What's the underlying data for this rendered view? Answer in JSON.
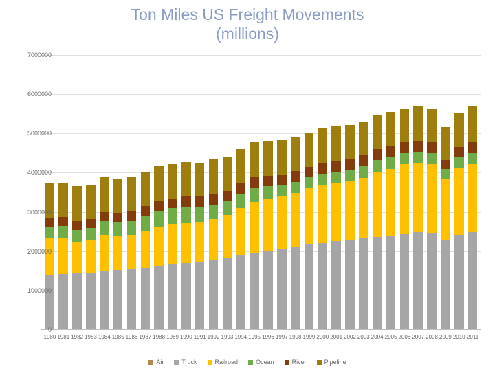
{
  "chart": {
    "type": "stacked-bar",
    "title_line1": "Ton Miles US Freight Movements",
    "title_line2": "(millions)",
    "title_color": "#8b9dc3",
    "title_fontsize": 23,
    "background_color": "#ffffff",
    "grid_color": "#e0e0e0",
    "axis_label_color": "#666666",
    "axis_label_fontsize": 9,
    "yaxis": {
      "min": 0,
      "max": 7000000,
      "step": 1000000,
      "ticks": [
        0,
        1000000,
        2000000,
        3000000,
        4000000,
        5000000,
        6000000,
        7000000
      ]
    },
    "series": [
      {
        "name": "Air",
        "color": "#b0894b"
      },
      {
        "name": "Truck",
        "color": "#a6a6a6"
      },
      {
        "name": "Railroad",
        "color": "#ffc000"
      },
      {
        "name": "Ocean",
        "color": "#70ad47"
      },
      {
        "name": "River",
        "color": "#843c0c"
      },
      {
        "name": "Pipeline",
        "color": "#9e7e0c"
      }
    ],
    "legend_order": [
      "Air",
      "Truck",
      "Railroad",
      "Ocean",
      "River",
      "Pipeline"
    ],
    "stack_order_bottom_to_top": [
      "Truck",
      "Railroad",
      "Ocean",
      "River",
      "Pipeline"
    ],
    "years": [
      "1980",
      "1981",
      "1982",
      "1983",
      "1984",
      "1985",
      "1986",
      "1987",
      "1988",
      "1989",
      "1990",
      "1991",
      "1992",
      "1993",
      "1994",
      "1995",
      "1996",
      "1997",
      "1998",
      "1999",
      "2000",
      "2001",
      "2002",
      "2003",
      "2004",
      "2005",
      "2006",
      "2007",
      "2008",
      "2009",
      "2010",
      "2011"
    ],
    "data": {
      "Truck": [
        1400000,
        1420000,
        1440000,
        1460000,
        1500000,
        1520000,
        1550000,
        1580000,
        1620000,
        1680000,
        1700000,
        1720000,
        1760000,
        1820000,
        1900000,
        1960000,
        2000000,
        2060000,
        2120000,
        2180000,
        2230000,
        2250000,
        2280000,
        2320000,
        2370000,
        2400000,
        2440000,
        2480000,
        2460000,
        2300000,
        2420000,
        2500000
      ],
      "Railroad": [
        930000,
        920000,
        800000,
        830000,
        920000,
        880000,
        870000,
        940000,
        1000000,
        1010000,
        1030000,
        1020000,
        1060000,
        1100000,
        1200000,
        1300000,
        1350000,
        1350000,
        1370000,
        1430000,
        1470000,
        1500000,
        1510000,
        1550000,
        1660000,
        1700000,
        1770000,
        1770000,
        1770000,
        1530000,
        1690000,
        1730000
      ],
      "Ocean": [
        300000,
        300000,
        300000,
        300000,
        350000,
        340000,
        360000,
        380000,
        400000,
        400000,
        380000,
        370000,
        370000,
        350000,
        350000,
        350000,
        300000,
        280000,
        270000,
        270000,
        280000,
        280000,
        270000,
        300000,
        300000,
        300000,
        280000,
        280000,
        280000,
        260000,
        280000,
        280000
      ],
      "River": [
        230000,
        230000,
        230000,
        230000,
        240000,
        240000,
        240000,
        250000,
        250000,
        260000,
        280000,
        280000,
        280000,
        260000,
        280000,
        290000,
        270000,
        270000,
        280000,
        270000,
        280000,
        280000,
        280000,
        270000,
        280000,
        280000,
        280000,
        280000,
        260000,
        240000,
        260000,
        270000
      ],
      "Pipeline": [
        880000,
        880000,
        880000,
        870000,
        880000,
        860000,
        870000,
        880000,
        900000,
        880000,
        880000,
        870000,
        880000,
        870000,
        870000,
        880000,
        900000,
        870000,
        870000,
        870000,
        880000,
        880000,
        880000,
        870000,
        870000,
        870000,
        870000,
        870000,
        850000,
        830000,
        870000,
        900000
      ]
    }
  }
}
